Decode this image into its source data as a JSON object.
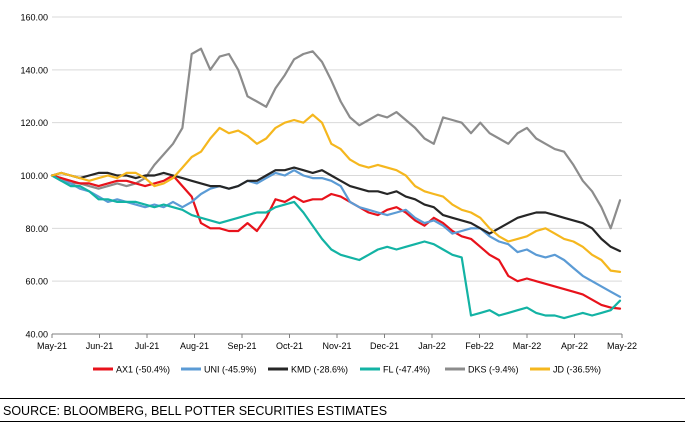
{
  "chart_data": {
    "type": "line",
    "xlabel": "",
    "ylabel": "",
    "ylim": [
      40,
      160
    ],
    "yticks": [
      "40.00",
      "60.00",
      "80.00",
      "100.00",
      "120.00",
      "140.00",
      "160.00"
    ],
    "x_tick_labels": [
      "May-21",
      "Jun-21",
      "Jul-21",
      "Aug-21",
      "Sep-21",
      "Oct-21",
      "Nov-21",
      "Dec-21",
      "Jan-22",
      "Feb-22",
      "Mar-22",
      "Apr-22",
      "May-22"
    ],
    "grid": "horizontal",
    "legend_position": "bottom",
    "series": [
      {
        "name": "AX1 (-50.4%)",
        "color": "#e8121b",
        "values": [
          100,
          99,
          98,
          97,
          97,
          96,
          97,
          98,
          98,
          97,
          96,
          97,
          98,
          100,
          96,
          92,
          82,
          80,
          80,
          79,
          79,
          82,
          79,
          84,
          91,
          90,
          92,
          90,
          91,
          91,
          93,
          92,
          90,
          88,
          86,
          85,
          87,
          88,
          86,
          83,
          81,
          84,
          82,
          79,
          77,
          76,
          73,
          70,
          68,
          62,
          60,
          61,
          60,
          59,
          58,
          57,
          56,
          55,
          53,
          51,
          50,
          49.6
        ]
      },
      {
        "name": "UNI (-45.9%)",
        "color": "#5b9bd5",
        "values": [
          100,
          98,
          97,
          95,
          94,
          92,
          90,
          91,
          90,
          89,
          88,
          89,
          88,
          90,
          88,
          90,
          93,
          95,
          96,
          95,
          96,
          98,
          97,
          99,
          101,
          100,
          102,
          100,
          99,
          99,
          98,
          96,
          90,
          88,
          87,
          86,
          85,
          86,
          87,
          84,
          82,
          83,
          81,
          78,
          79,
          80,
          80,
          77,
          75,
          74,
          71,
          72,
          70,
          69,
          70,
          68,
          65,
          62,
          60,
          58,
          56,
          54.1
        ]
      },
      {
        "name": "KMD (-28.6%)",
        "color": "#262626",
        "values": [
          100,
          101,
          100,
          99,
          100,
          101,
          101,
          100,
          100,
          99,
          100,
          100,
          101,
          100,
          99,
          98,
          97,
          96,
          96,
          95,
          96,
          98,
          98,
          100,
          102,
          102,
          103,
          102,
          101,
          102,
          100,
          98,
          96,
          95,
          94,
          94,
          93,
          94,
          92,
          91,
          89,
          88,
          85,
          84,
          83,
          82,
          80,
          78,
          80,
          82,
          84,
          85,
          86,
          86,
          85,
          84,
          83,
          82,
          80,
          76,
          73,
          71.4
        ]
      },
      {
        "name": "FL (-47.4%)",
        "color": "#13b3a4",
        "values": [
          100,
          98,
          96,
          96,
          94,
          91,
          91,
          90,
          90,
          90,
          89,
          88,
          89,
          88,
          87,
          85,
          84,
          83,
          82,
          83,
          84,
          85,
          86,
          86,
          88,
          89,
          90,
          86,
          81,
          76,
          72,
          70,
          69,
          68,
          70,
          72,
          73,
          72,
          73,
          74,
          75,
          74,
          72,
          70,
          69,
          47,
          48,
          49,
          47,
          48,
          49,
          50,
          48,
          47,
          47,
          46,
          47,
          48,
          47,
          48,
          49,
          52.6
        ]
      },
      {
        "name": "DKS (-9.4%)",
        "color": "#8c8c8c",
        "values": [
          100,
          99,
          97,
          97,
          96,
          95,
          96,
          97,
          96,
          97,
          99,
          104,
          108,
          112,
          118,
          146,
          148,
          140,
          145,
          146,
          140,
          130,
          128,
          126,
          133,
          138,
          144,
          146,
          147,
          143,
          136,
          128,
          122,
          119,
          121,
          123,
          122,
          124,
          121,
          118,
          114,
          112,
          122,
          121,
          120,
          116,
          120,
          116,
          114,
          112,
          116,
          118,
          114,
          112,
          110,
          109,
          104,
          98,
          94,
          88,
          80,
          90.6
        ]
      },
      {
        "name": "JD (-36.5%)",
        "color": "#f5b71e",
        "values": [
          100,
          101,
          100,
          99,
          98,
          99,
          100,
          99,
          101,
          101,
          99,
          96,
          97,
          99,
          103,
          107,
          109,
          114,
          118,
          116,
          117,
          115,
          112,
          114,
          118,
          120,
          121,
          120,
          123,
          120,
          112,
          110,
          106,
          104,
          103,
          104,
          103,
          102,
          100,
          96,
          94,
          93,
          92,
          89,
          87,
          86,
          84,
          80,
          77,
          75,
          76,
          77,
          79,
          80,
          78,
          76,
          75,
          73,
          70,
          68,
          64,
          63.5
        ]
      }
    ]
  },
  "source_text": "SOURCE: BLOOMBERG, BELL POTTER SECURITIES ESTIMATES"
}
